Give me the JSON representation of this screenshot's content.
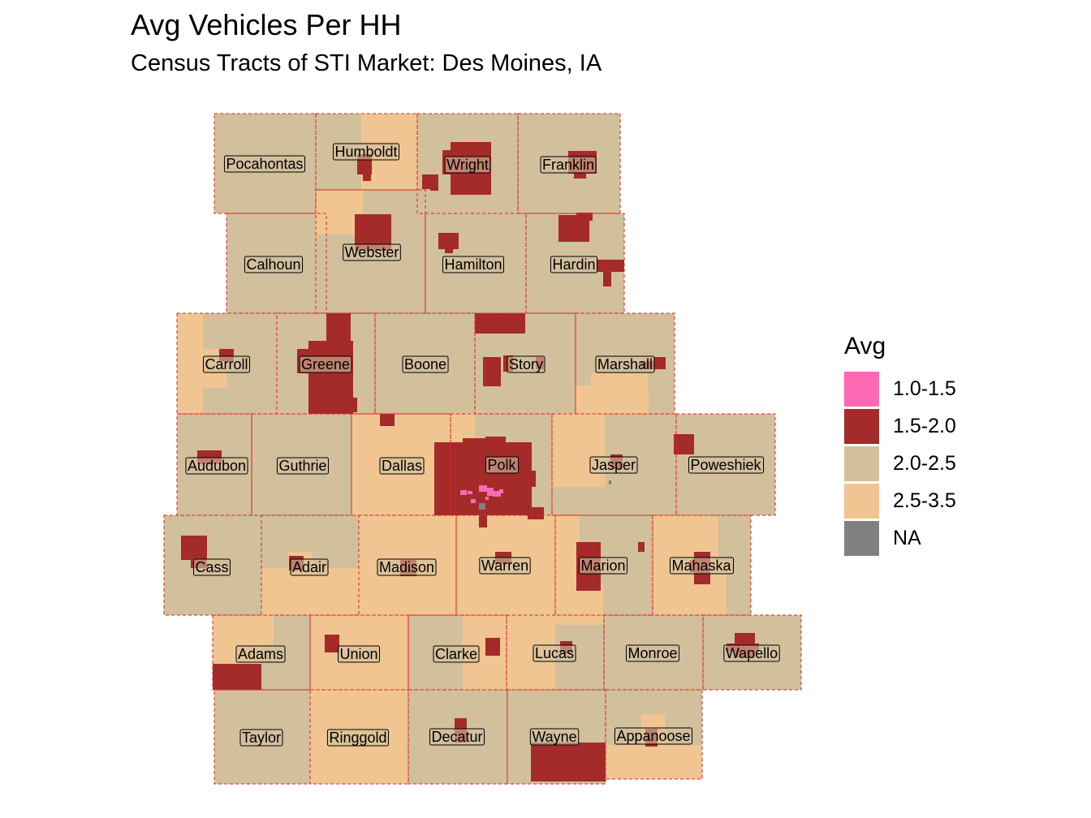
{
  "title": "Avg Vehicles Per HH",
  "subtitle": "Census Tracts of STI Market: Des Moines, IA",
  "legend": {
    "title": "Avg",
    "items": [
      {
        "label": "1.0-1.5",
        "color": "#ff69b4"
      },
      {
        "label": "1.5-2.0",
        "color": "#a52a2a"
      },
      {
        "label": "2.0-2.5",
        "color": "#d2bf9c"
      },
      {
        "label": "2.5-3.5",
        "color": "#f0c591"
      },
      {
        "label": "NA",
        "color": "#808080"
      }
    ]
  },
  "colors": {
    "background": "#ffffff",
    "county_border": "#e3221c"
  },
  "counties": [
    "Pocahontas",
    "Humboldt",
    "Wright",
    "Franklin",
    "Calhoun",
    "Webster",
    "Hamilton",
    "Hardin",
    "Carroll",
    "Greene",
    "Boone",
    "Story",
    "Marshall",
    "Audubon",
    "Guthrie",
    "Dallas",
    "Polk",
    "Jasper",
    "Poweshiek",
    "Cass",
    "Adair",
    "Madison",
    "Warren",
    "Marion",
    "Mahaska",
    "Adams",
    "Union",
    "Clarke",
    "Lucas",
    "Monroe",
    "Wapello",
    "Taylor",
    "Ringgold",
    "Decatur",
    "Wayne",
    "Appanoose"
  ]
}
